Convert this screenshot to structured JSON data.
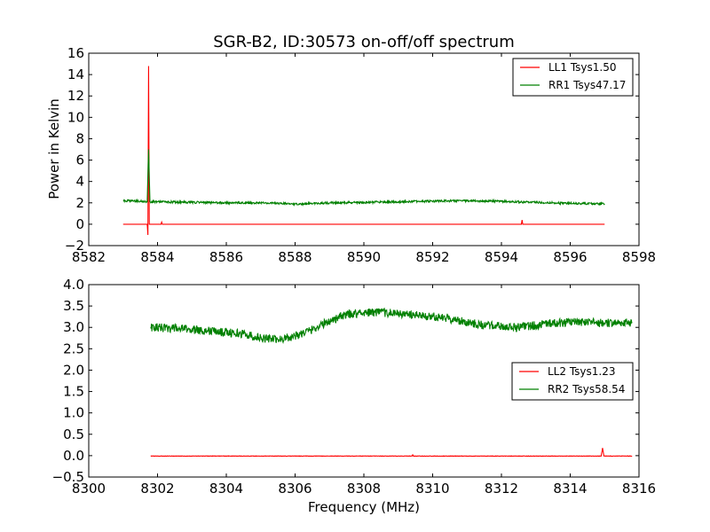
{
  "figure": {
    "title": "SGR-B2, ID:30573 on-off/off spectrum",
    "ylabel": "Power in Kelvin",
    "xlabel": "Frequency (MHz)"
  },
  "chart_data": [
    {
      "type": "line",
      "title": "SGR-B2, ID:30573 on-off/off spectrum",
      "xlabel": "",
      "ylabel": "Power in Kelvin",
      "xlim": [
        8582,
        8598
      ],
      "ylim": [
        -2,
        16
      ],
      "xticks": [
        8582,
        8584,
        8586,
        8588,
        8590,
        8592,
        8594,
        8596,
        8598
      ],
      "yticks": [
        -2,
        0,
        2,
        4,
        6,
        8,
        10,
        12,
        14,
        16
      ],
      "legend_position": "top-right",
      "grid": false,
      "series": [
        {
          "name": "LL1 Tsys1.50",
          "color": "#ff0000",
          "x": [
            8583.0,
            8583.5,
            8583.7,
            8583.72,
            8583.74,
            8583.76,
            8583.78,
            8583.8,
            8584.0,
            8584.1,
            8584.12,
            8584.14,
            8584.5,
            8585.0,
            8585.5,
            8586.0,
            8586.5,
            8587.0,
            8587.5,
            8588.0,
            8588.5,
            8589.0,
            8589.5,
            8590.0,
            8590.5,
            8591.0,
            8591.5,
            8592.0,
            8592.5,
            8593.0,
            8593.5,
            8594.0,
            8594.5,
            8594.58,
            8594.6,
            8594.62,
            8595.0,
            8595.5,
            8596.0,
            8596.5,
            8597.0
          ],
          "values": [
            0.0,
            0.0,
            0.0,
            -1.0,
            14.8,
            0.0,
            0.0,
            0.0,
            0.0,
            0.0,
            0.2,
            0.0,
            0.0,
            0.0,
            0.0,
            0.0,
            0.0,
            0.0,
            0.0,
            0.0,
            0.0,
            0.0,
            0.0,
            0.0,
            0.0,
            0.0,
            0.0,
            0.0,
            0.0,
            0.0,
            0.0,
            0.0,
            0.0,
            0.0,
            0.4,
            0.0,
            0.0,
            0.0,
            0.0,
            0.0,
            0.0
          ]
        },
        {
          "name": "RR1 Tsys47.17",
          "color": "#008000",
          "x": [
            8583.0,
            8583.5,
            8583.7,
            8583.74,
            8583.78,
            8584.0,
            8585.0,
            8586.0,
            8587.0,
            8588.0,
            8589.0,
            8590.0,
            8591.0,
            8592.0,
            8593.0,
            8594.0,
            8595.0,
            8596.0,
            8597.0
          ],
          "values": [
            2.2,
            2.15,
            2.1,
            7.0,
            2.1,
            2.1,
            2.05,
            2.0,
            2.0,
            1.9,
            2.0,
            2.05,
            2.1,
            2.15,
            2.2,
            2.15,
            2.05,
            1.95,
            1.9
          ],
          "noise": 0.1
        }
      ]
    },
    {
      "type": "line",
      "title": "",
      "xlabel": "Frequency (MHz)",
      "ylabel": "",
      "xlim": [
        8300,
        8316
      ],
      "ylim": [
        -0.5,
        4.0
      ],
      "xticks": [
        8300,
        8302,
        8304,
        8306,
        8308,
        8310,
        8312,
        8314,
        8316
      ],
      "yticks": [
        -0.5,
        0.0,
        0.5,
        1.0,
        1.5,
        2.0,
        2.5,
        3.0,
        3.5,
        4.0
      ],
      "legend_position": "center-right",
      "grid": false,
      "series": [
        {
          "name": "LL2 Tsys1.23",
          "color": "#ff0000",
          "x": [
            8301.8,
            8303.0,
            8305.0,
            8307.0,
            8309.0,
            8309.4,
            8309.42,
            8309.44,
            8311.0,
            8313.0,
            8314.9,
            8314.94,
            8314.98,
            8315.8
          ],
          "values": [
            -0.01,
            -0.01,
            -0.01,
            -0.01,
            -0.01,
            -0.01,
            0.02,
            -0.01,
            -0.01,
            -0.01,
            -0.01,
            0.18,
            -0.01,
            -0.01
          ],
          "noise": 0.005
        },
        {
          "name": "RR2 Tsys58.54",
          "color": "#008000",
          "x": [
            8301.8,
            8302.5,
            8303.5,
            8304.5,
            8305.0,
            8305.5,
            8306.0,
            8306.5,
            8307.0,
            8307.5,
            8308.0,
            8308.5,
            8309.0,
            8309.5,
            8310.0,
            8310.5,
            8311.0,
            8311.5,
            8312.0,
            8312.5,
            8313.0,
            8313.5,
            8314.0,
            8314.5,
            8315.0,
            8315.8
          ],
          "values": [
            3.0,
            2.98,
            2.92,
            2.85,
            2.75,
            2.72,
            2.8,
            2.95,
            3.15,
            3.3,
            3.35,
            3.35,
            3.32,
            3.28,
            3.25,
            3.2,
            3.12,
            3.05,
            3.02,
            3.0,
            3.05,
            3.1,
            3.12,
            3.12,
            3.1,
            3.12
          ],
          "noise": 0.1
        }
      ]
    }
  ]
}
